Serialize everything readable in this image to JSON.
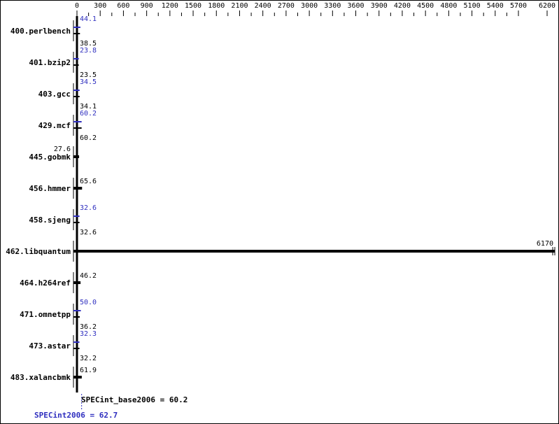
{
  "chart_data": {
    "type": "bar",
    "orientation": "horizontal",
    "x_ticks": [
      0,
      300,
      600,
      900,
      1200,
      1500,
      1800,
      2100,
      2400,
      2700,
      3000,
      3300,
      3600,
      3900,
      4200,
      4500,
      4800,
      5100,
      5400,
      5700,
      6200
    ],
    "categories": [
      "400.perlbench",
      "401.bzip2",
      "403.gcc",
      "429.mcf",
      "445.gobmk",
      "456.hmmer",
      "458.sjeng",
      "462.libquantum",
      "464.h264ref",
      "471.omnetpp",
      "473.astar",
      "483.xalancbmk"
    ],
    "series": [
      {
        "name": "SPECint2006",
        "color": "#2f2fbf",
        "values": [
          44.1,
          23.8,
          34.5,
          60.2,
          null,
          null,
          32.6,
          null,
          null,
          50.0,
          32.3,
          null
        ]
      },
      {
        "name": "SPECint_base2006",
        "color": "#000000",
        "values": [
          38.5,
          23.5,
          34.1,
          60.2,
          27.6,
          65.6,
          32.6,
          6170,
          46.2,
          36.2,
          32.2,
          61.9
        ]
      }
    ],
    "summary": {
      "base_label": "SPECint_base2006 = 60.2",
      "peak_label": "SPECint2006 = 62.7",
      "base_value": 60.2,
      "peak_value": 62.7
    },
    "xlim": [
      0,
      6200
    ],
    "grid": false
  }
}
